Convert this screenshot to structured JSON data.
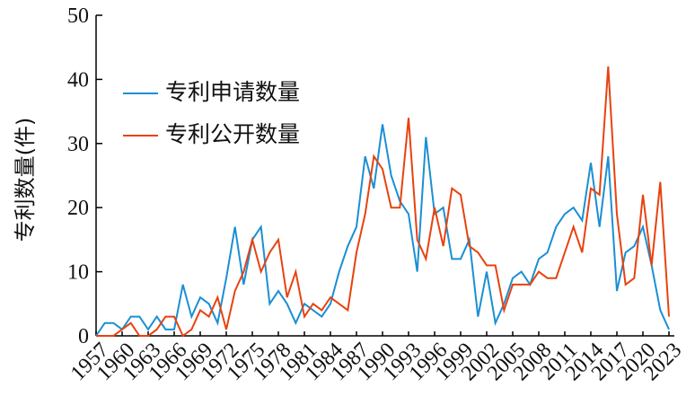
{
  "chart_data": {
    "type": "line",
    "y_label": "专利数量(件)",
    "x": [
      1957,
      1958,
      1959,
      1960,
      1961,
      1962,
      1963,
      1964,
      1965,
      1966,
      1967,
      1968,
      1969,
      1970,
      1971,
      1972,
      1973,
      1974,
      1975,
      1976,
      1977,
      1978,
      1979,
      1980,
      1981,
      1982,
      1983,
      1984,
      1985,
      1986,
      1987,
      1988,
      1989,
      1990,
      1991,
      1992,
      1993,
      1994,
      1995,
      1996,
      1997,
      1998,
      1999,
      2000,
      2001,
      2002,
      2003,
      2004,
      2005,
      2006,
      2007,
      2008,
      2009,
      2010,
      2011,
      2012,
      2013,
      2014,
      2015,
      2016,
      2017,
      2018,
      2019,
      2020,
      2021,
      2022,
      2023
    ],
    "series": [
      {
        "name": "专利申请数量",
        "color": "#1b8fd3",
        "values": [
          0,
          2,
          2,
          1,
          3,
          3,
          1,
          3,
          1,
          1,
          8,
          3,
          6,
          5,
          2,
          9,
          17,
          8,
          15,
          17,
          5,
          7,
          5,
          2,
          5,
          4,
          3,
          5,
          10,
          14,
          17,
          28,
          23,
          33,
          25,
          21,
          19,
          10,
          31,
          19,
          20,
          12,
          12,
          15,
          3,
          10,
          2,
          5,
          9,
          10,
          8,
          12,
          13,
          17,
          19,
          20,
          18,
          27,
          17,
          28,
          7,
          13,
          14,
          17,
          11,
          4,
          1
        ]
      },
      {
        "name": "专利公开数量",
        "color": "#e8420e",
        "values": [
          0,
          0,
          0,
          1,
          2,
          0,
          0,
          1,
          3,
          3,
          0,
          1,
          4,
          3,
          6,
          1,
          7,
          10,
          15,
          10,
          13,
          15,
          6,
          10,
          3,
          5,
          4,
          6,
          5,
          4,
          13,
          19,
          28,
          26,
          20,
          20,
          34,
          15,
          12,
          20,
          14,
          23,
          22,
          14,
          13,
          11,
          11,
          4,
          8,
          8,
          8,
          10,
          9,
          9,
          13,
          17,
          13,
          23,
          22,
          42,
          19,
          8,
          9,
          22,
          11,
          24,
          3
        ]
      }
    ],
    "xlim": [
      1957,
      2023
    ],
    "xticks": [
      1957,
      1960,
      1963,
      1966,
      1969,
      1972,
      1975,
      1978,
      1981,
      1984,
      1987,
      1990,
      1993,
      1996,
      1999,
      2002,
      2005,
      2008,
      2011,
      2014,
      2017,
      2020,
      2023
    ],
    "ylim": [
      0,
      50
    ],
    "yticks": [
      0,
      10,
      20,
      30,
      40,
      50
    ]
  }
}
